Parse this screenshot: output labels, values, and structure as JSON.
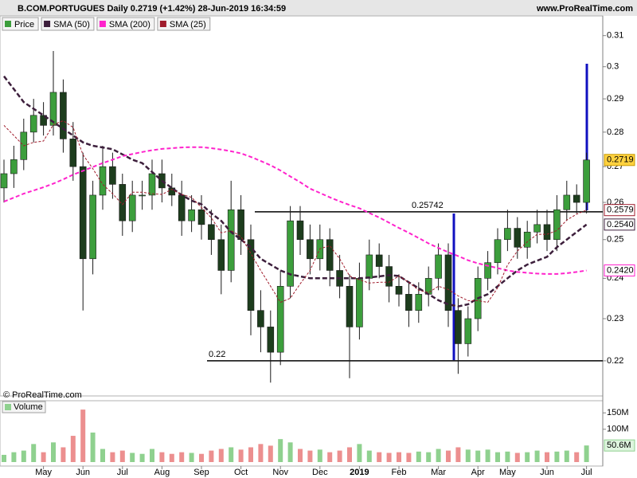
{
  "chart_data": {
    "type": "candlestick",
    "title": "B.COM.PORTUGUES Daily 0.2719 (+1.42%) 28-Jun-2019 16:34:59",
    "source": "www.ProRealTime.com",
    "copyright": "© ProRealTime.com",
    "log_scale": true,
    "ylim": [
      0.212,
      0.3165
    ],
    "yticks": [
      0.22,
      0.23,
      0.24,
      0.25,
      0.26,
      0.27,
      0.28,
      0.29,
      0.3,
      0.31
    ],
    "categories": [
      null,
      null,
      null,
      null,
      "May",
      null,
      null,
      null,
      "Jun",
      null,
      null,
      null,
      "Jul",
      null,
      null,
      null,
      "Aug",
      null,
      null,
      null,
      "Sep",
      null,
      null,
      null,
      "Oct",
      null,
      null,
      null,
      "Nov",
      null,
      null,
      null,
      "Dec",
      null,
      null,
      null,
      "2019",
      null,
      null,
      null,
      "Feb",
      null,
      null,
      null,
      "Mar",
      null,
      null,
      null,
      "Apr",
      null,
      null,
      "May",
      null,
      null,
      null,
      "Jun",
      null,
      null,
      null,
      "Jul"
    ],
    "price": {
      "name": "Price",
      "color": "#3c9e3c",
      "up_color": "#3c9e3c",
      "down_color": "#1d3d1d",
      "open": [
        0.264,
        0.268,
        0.272,
        0.28,
        0.285,
        0.282,
        0.292,
        0.278,
        0.27,
        0.245,
        0.262,
        0.27,
        0.265,
        0.255,
        0.262,
        0.262,
        0.268,
        0.264,
        0.262,
        0.255,
        0.258,
        0.254,
        0.25,
        0.242,
        0.258,
        0.25,
        0.232,
        0.228,
        0.222,
        0.238,
        0.255,
        0.25,
        0.245,
        0.25,
        0.242,
        0.238,
        0.228,
        0.24,
        0.246,
        0.243,
        0.238,
        0.236,
        0.232,
        0.236,
        0.24,
        0.246,
        0.232,
        0.224,
        0.23,
        0.24,
        0.244,
        0.25,
        0.253,
        0.248,
        0.252,
        0.254,
        0.25,
        0.258,
        0.262,
        0.26
      ],
      "high": [
        0.272,
        0.276,
        0.284,
        0.29,
        0.289,
        0.305,
        0.296,
        0.283,
        0.274,
        0.266,
        0.276,
        0.274,
        0.268,
        0.266,
        0.266,
        0.272,
        0.272,
        0.268,
        0.266,
        0.262,
        0.262,
        0.258,
        0.254,
        0.266,
        0.262,
        0.254,
        0.237,
        0.232,
        0.242,
        0.259,
        0.259,
        0.254,
        0.254,
        0.253,
        0.246,
        0.241,
        0.244,
        0.25,
        0.249,
        0.246,
        0.241,
        0.239,
        0.239,
        0.243,
        0.249,
        0.249,
        0.235,
        0.233,
        0.243,
        0.247,
        0.253,
        0.258,
        0.256,
        0.255,
        0.258,
        0.258,
        0.262,
        0.266,
        0.265,
        0.274
      ],
      "low": [
        0.26,
        0.264,
        0.269,
        0.277,
        0.279,
        0.279,
        0.274,
        0.266,
        0.232,
        0.241,
        0.258,
        0.261,
        0.251,
        0.252,
        0.258,
        0.258,
        0.26,
        0.259,
        0.251,
        0.252,
        0.25,
        0.246,
        0.236,
        0.239,
        0.246,
        0.226,
        0.222,
        0.215,
        0.219,
        0.235,
        0.246,
        0.241,
        0.242,
        0.238,
        0.235,
        0.216,
        0.225,
        0.237,
        0.24,
        0.234,
        0.233,
        0.228,
        0.229,
        0.233,
        0.237,
        0.228,
        0.217,
        0.221,
        0.227,
        0.237,
        0.241,
        0.247,
        0.245,
        0.245,
        0.249,
        0.247,
        0.247,
        0.255,
        0.257,
        0.257
      ],
      "close": [
        0.268,
        0.272,
        0.28,
        0.285,
        0.282,
        0.292,
        0.278,
        0.27,
        0.245,
        0.262,
        0.27,
        0.265,
        0.255,
        0.262,
        0.262,
        0.268,
        0.264,
        0.262,
        0.255,
        0.258,
        0.254,
        0.25,
        0.242,
        0.258,
        0.25,
        0.232,
        0.228,
        0.222,
        0.238,
        0.255,
        0.25,
        0.245,
        0.25,
        0.242,
        0.238,
        0.228,
        0.24,
        0.246,
        0.243,
        0.238,
        0.236,
        0.232,
        0.236,
        0.24,
        0.246,
        0.232,
        0.224,
        0.23,
        0.24,
        0.244,
        0.25,
        0.253,
        0.248,
        0.252,
        0.254,
        0.25,
        0.258,
        0.262,
        0.26,
        0.2719
      ],
      "value_labels": [
        null,
        null,
        null,
        null,
        null,
        null,
        null,
        null,
        null,
        null,
        null,
        null,
        null,
        null,
        null,
        null,
        null,
        null,
        null,
        null,
        null,
        null,
        null,
        null,
        null,
        null,
        null,
        null,
        null,
        null,
        null,
        null,
        null,
        null,
        null,
        null,
        null,
        null,
        null,
        null,
        null,
        null,
        null,
        null,
        null,
        null,
        null,
        null,
        null,
        null,
        null,
        null,
        null,
        null,
        null,
        null,
        null,
        null,
        null,
        "0.2719"
      ]
    },
    "sma": [
      {
        "name": "SMA (50)",
        "color": "#3d1f3c",
        "values": [
          0.297,
          0.293,
          0.289,
          0.287,
          0.285,
          0.283,
          0.281,
          0.279,
          0.277,
          0.276,
          0.2755,
          0.275,
          0.2735,
          0.272,
          0.271,
          0.2685,
          0.266,
          0.264,
          0.262,
          0.2605,
          0.2595,
          0.257,
          0.255,
          0.252,
          0.25,
          0.248,
          0.245,
          0.2435,
          0.242,
          0.241,
          0.2405,
          0.24,
          0.24,
          0.24,
          0.24,
          0.24,
          0.24,
          0.2402,
          0.2405,
          0.2408,
          0.2406,
          0.239,
          0.2375,
          0.236,
          0.2345,
          0.2335,
          0.233,
          0.2335,
          0.235,
          0.236,
          0.238,
          0.24,
          0.242,
          0.2435,
          0.2445,
          0.2455,
          0.248,
          0.25,
          0.252,
          0.254
        ],
        "value_labels": [
          null,
          null,
          null,
          null,
          null,
          null,
          null,
          null,
          null,
          null,
          null,
          null,
          null,
          null,
          null,
          null,
          null,
          null,
          null,
          null,
          null,
          null,
          null,
          null,
          null,
          null,
          null,
          null,
          null,
          null,
          null,
          null,
          null,
          null,
          null,
          null,
          null,
          null,
          null,
          null,
          null,
          null,
          null,
          null,
          null,
          null,
          null,
          null,
          null,
          null,
          null,
          null,
          null,
          null,
          null,
          null,
          null,
          null,
          null,
          "0.2540"
        ]
      },
      {
        "name": "SMA (200)",
        "color": "#ff22cc",
        "values": [
          0.2602,
          0.2613,
          0.2624,
          0.2633,
          0.2642,
          0.2652,
          0.2664,
          0.2677,
          0.2688,
          0.2699,
          0.271,
          0.272,
          0.273,
          0.2736,
          0.2742,
          0.2747,
          0.2751,
          0.2753,
          0.2755,
          0.2756,
          0.2756,
          0.2753,
          0.2749,
          0.2744,
          0.2738,
          0.2728,
          0.2716,
          0.2704,
          0.2689,
          0.2672,
          0.2656,
          0.2638,
          0.2626,
          0.2614,
          0.2603,
          0.2593,
          0.2584,
          0.2571,
          0.2559,
          0.2545,
          0.2531,
          0.2518,
          0.2504,
          0.249,
          0.2478,
          0.2467,
          0.2457,
          0.2446,
          0.2438,
          0.2432,
          0.2426,
          0.242,
          0.2416,
          0.2414,
          0.2412,
          0.2411,
          0.2411,
          0.2413,
          0.2416,
          0.242
        ],
        "value_labels": [
          null,
          null,
          null,
          null,
          null,
          null,
          null,
          null,
          null,
          null,
          null,
          null,
          null,
          null,
          null,
          null,
          null,
          null,
          null,
          null,
          null,
          null,
          null,
          null,
          null,
          null,
          null,
          null,
          null,
          null,
          null,
          null,
          null,
          null,
          null,
          null,
          null,
          null,
          null,
          null,
          null,
          null,
          null,
          null,
          null,
          null,
          null,
          null,
          null,
          null,
          null,
          null,
          null,
          null,
          null,
          null,
          null,
          null,
          null,
          "0.2420"
        ]
      },
      {
        "name": "SMA (25)",
        "color": "#a01c2c",
        "values": [
          0.282,
          0.279,
          0.276,
          0.277,
          0.2774,
          0.2822,
          0.2834,
          0.2814,
          0.2734,
          0.2694,
          0.265,
          0.2624,
          0.2594,
          0.2628,
          0.2628,
          0.2624,
          0.2622,
          0.2636,
          0.2622,
          0.2614,
          0.2586,
          0.2558,
          0.2518,
          0.2524,
          0.2508,
          0.2464,
          0.242,
          0.238,
          0.234,
          0.235,
          0.2386,
          0.242,
          0.2476,
          0.2484,
          0.245,
          0.2406,
          0.2396,
          0.2388,
          0.239,
          0.239,
          0.2406,
          0.239,
          0.237,
          0.2364,
          0.238,
          0.2372,
          0.2356,
          0.2344,
          0.2344,
          0.234,
          0.2376,
          0.2434,
          0.247,
          0.2494,
          0.2514,
          0.2514,
          0.2524,
          0.2552,
          0.2568,
          0.2579
        ],
        "value_labels": [
          null,
          null,
          null,
          null,
          null,
          null,
          null,
          null,
          null,
          null,
          null,
          null,
          null,
          null,
          null,
          null,
          null,
          null,
          null,
          null,
          null,
          null,
          null,
          null,
          null,
          null,
          null,
          null,
          null,
          null,
          null,
          null,
          null,
          null,
          null,
          null,
          null,
          null,
          null,
          null,
          null,
          null,
          null,
          null,
          null,
          null,
          null,
          null,
          null,
          null,
          null,
          null,
          null,
          null,
          null,
          null,
          null,
          null,
          null,
          "0.2579"
        ]
      }
    ],
    "hlines": [
      0.25742,
      0.22
    ],
    "volume": {
      "name": "Volume",
      "up_color": "#8fd18f",
      "down_color": "#ec8f8f",
      "ylim": [
        0,
        170000000
      ],
      "yticks": [
        {
          "value": 100000000,
          "label": "100M"
        },
        {
          "value": 150000000,
          "label": "150M"
        }
      ],
      "values": [
        22000000,
        30000000,
        35000000,
        55000000,
        30000000,
        60000000,
        45000000,
        80000000,
        160000000,
        90000000,
        40000000,
        30000000,
        35000000,
        28000000,
        25000000,
        40000000,
        30000000,
        25000000,
        30000000,
        28000000,
        25000000,
        35000000,
        40000000,
        45000000,
        38000000,
        45000000,
        55000000,
        50000000,
        70000000,
        60000000,
        40000000,
        35000000,
        38000000,
        30000000,
        35000000,
        45000000,
        55000000,
        35000000,
        30000000,
        28000000,
        30000000,
        28000000,
        32000000,
        30000000,
        40000000,
        35000000,
        45000000,
        38000000,
        35000000,
        38000000,
        30000000,
        32000000,
        28000000,
        30000000,
        35000000,
        30000000,
        32000000,
        35000000,
        30000000,
        50600000
      ],
      "value_labels": [
        null,
        null,
        null,
        null,
        null,
        null,
        null,
        null,
        null,
        null,
        null,
        null,
        null,
        null,
        null,
        null,
        null,
        null,
        null,
        null,
        null,
        null,
        null,
        null,
        null,
        null,
        null,
        null,
        null,
        null,
        null,
        null,
        null,
        null,
        null,
        null,
        null,
        null,
        null,
        null,
        null,
        null,
        null,
        null,
        null,
        null,
        null,
        null,
        null,
        null,
        null,
        null,
        null,
        null,
        null,
        null,
        null,
        null,
        null,
        "50.6M"
      ]
    }
  }
}
